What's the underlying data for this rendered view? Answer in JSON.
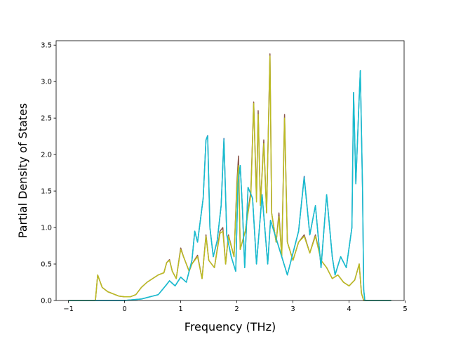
{
  "chart_data": {
    "type": "line",
    "title": "",
    "xlabel": "Frequency (THz)",
    "ylabel": "Partial Density of States",
    "xlim": [
      -1.22,
      4.98
    ],
    "ylim": [
      0.0,
      3.56
    ],
    "xticks": [
      -1,
      0,
      1,
      2,
      3,
      4,
      5
    ],
    "yticks": [
      0.0,
      0.5,
      1.0,
      1.5,
      2.0,
      2.5,
      3.0,
      3.5
    ],
    "xtick_labels": [
      "−1",
      "0",
      "1",
      "2",
      "3",
      "4",
      "5"
    ],
    "ytick_labels": [
      "0.0",
      "0.5",
      "1.0",
      "1.5",
      "2.0",
      "2.5",
      "3.0",
      "3.5"
    ],
    "grid": false,
    "legend": "none",
    "series": [
      {
        "color": "#1f77b4",
        "points": [
          [
            -1.0,
            0.0
          ],
          [
            -0.5,
            0.0
          ],
          [
            -0.3,
            0.0
          ],
          [
            0.0,
            0.0
          ],
          [
            0.3,
            0.02
          ],
          [
            0.6,
            0.08
          ],
          [
            0.75,
            0.22
          ],
          [
            0.8,
            0.27
          ],
          [
            0.9,
            0.2
          ],
          [
            1.0,
            0.32
          ],
          [
            1.1,
            0.25
          ],
          [
            1.2,
            0.55
          ],
          [
            1.25,
            0.95
          ],
          [
            1.3,
            0.8
          ],
          [
            1.4,
            1.4
          ],
          [
            1.45,
            2.2
          ],
          [
            1.48,
            2.26
          ],
          [
            1.52,
            1.0
          ],
          [
            1.58,
            0.6
          ],
          [
            1.65,
            0.82
          ],
          [
            1.72,
            1.3
          ],
          [
            1.77,
            2.22
          ],
          [
            1.82,
            0.9
          ],
          [
            1.9,
            0.6
          ],
          [
            1.98,
            0.4
          ],
          [
            2.02,
            1.6
          ],
          [
            2.06,
            1.85
          ],
          [
            2.1,
            1.25
          ],
          [
            2.14,
            0.45
          ],
          [
            2.2,
            1.55
          ],
          [
            2.28,
            1.4
          ],
          [
            2.35,
            0.5
          ],
          [
            2.45,
            1.45
          ],
          [
            2.55,
            0.5
          ],
          [
            2.6,
            1.1
          ],
          [
            2.7,
            0.85
          ],
          [
            2.8,
            0.6
          ],
          [
            2.9,
            0.35
          ],
          [
            3.0,
            0.65
          ],
          [
            3.1,
            0.95
          ],
          [
            3.2,
            1.7
          ],
          [
            3.3,
            0.9
          ],
          [
            3.4,
            1.3
          ],
          [
            3.5,
            0.45
          ],
          [
            3.6,
            1.45
          ],
          [
            3.7,
            0.6
          ],
          [
            3.75,
            0.35
          ],
          [
            3.85,
            0.6
          ],
          [
            3.95,
            0.45
          ],
          [
            4.05,
            1.0
          ],
          [
            4.08,
            2.85
          ],
          [
            4.12,
            1.6
          ],
          [
            4.17,
            2.6
          ],
          [
            4.2,
            3.15
          ],
          [
            4.24,
            1.5
          ],
          [
            4.26,
            0.15
          ],
          [
            4.28,
            0.0
          ],
          [
            4.75,
            0.0
          ]
        ]
      },
      {
        "color": "#8c564b",
        "points": [
          [
            -1.0,
            0.0
          ],
          [
            -0.52,
            0.0
          ],
          [
            -0.48,
            0.35
          ],
          [
            -0.4,
            0.18
          ],
          [
            -0.3,
            0.12
          ],
          [
            -0.1,
            0.06
          ],
          [
            0.0,
            0.05
          ],
          [
            0.1,
            0.05
          ],
          [
            0.2,
            0.08
          ],
          [
            0.3,
            0.18
          ],
          [
            0.4,
            0.25
          ],
          [
            0.5,
            0.3
          ],
          [
            0.6,
            0.35
          ],
          [
            0.7,
            0.38
          ],
          [
            0.75,
            0.52
          ],
          [
            0.8,
            0.56
          ],
          [
            0.85,
            0.4
          ],
          [
            0.92,
            0.3
          ],
          [
            1.0,
            0.72
          ],
          [
            1.05,
            0.6
          ],
          [
            1.15,
            0.4
          ],
          [
            1.2,
            0.5
          ],
          [
            1.3,
            0.62
          ],
          [
            1.38,
            0.3
          ],
          [
            1.45,
            0.9
          ],
          [
            1.5,
            0.55
          ],
          [
            1.6,
            0.45
          ],
          [
            1.7,
            0.95
          ],
          [
            1.75,
            1.0
          ],
          [
            1.8,
            0.5
          ],
          [
            1.85,
            0.9
          ],
          [
            1.95,
            0.6
          ],
          [
            2.0,
            1.6
          ],
          [
            2.03,
            1.98
          ],
          [
            2.06,
            0.7
          ],
          [
            2.15,
            0.95
          ],
          [
            2.25,
            1.5
          ],
          [
            2.3,
            2.72
          ],
          [
            2.35,
            1.4
          ],
          [
            2.38,
            2.6
          ],
          [
            2.42,
            1.3
          ],
          [
            2.48,
            2.2
          ],
          [
            2.53,
            1.2
          ],
          [
            2.59,
            3.38
          ],
          [
            2.62,
            1.2
          ],
          [
            2.7,
            0.8
          ],
          [
            2.75,
            1.2
          ],
          [
            2.8,
            0.6
          ],
          [
            2.85,
            2.55
          ],
          [
            2.9,
            0.8
          ],
          [
            3.0,
            0.55
          ],
          [
            3.1,
            0.8
          ],
          [
            3.2,
            0.9
          ],
          [
            3.3,
            0.65
          ],
          [
            3.4,
            0.9
          ],
          [
            3.5,
            0.55
          ],
          [
            3.6,
            0.45
          ],
          [
            3.7,
            0.3
          ],
          [
            3.8,
            0.35
          ],
          [
            3.9,
            0.25
          ],
          [
            4.0,
            0.2
          ],
          [
            4.1,
            0.28
          ],
          [
            4.18,
            0.5
          ],
          [
            4.22,
            0.1
          ],
          [
            4.26,
            0.0
          ],
          [
            4.75,
            0.0
          ]
        ]
      },
      {
        "color": "#bcbd22",
        "points": [
          [
            -1.0,
            0.0
          ],
          [
            -0.52,
            0.0
          ],
          [
            -0.48,
            0.35
          ],
          [
            -0.4,
            0.18
          ],
          [
            -0.3,
            0.12
          ],
          [
            -0.1,
            0.06
          ],
          [
            0.0,
            0.05
          ],
          [
            0.1,
            0.05
          ],
          [
            0.2,
            0.08
          ],
          [
            0.3,
            0.18
          ],
          [
            0.4,
            0.25
          ],
          [
            0.5,
            0.3
          ],
          [
            0.6,
            0.35
          ],
          [
            0.7,
            0.38
          ],
          [
            0.75,
            0.52
          ],
          [
            0.8,
            0.55
          ],
          [
            0.85,
            0.4
          ],
          [
            0.92,
            0.3
          ],
          [
            1.0,
            0.7
          ],
          [
            1.05,
            0.6
          ],
          [
            1.15,
            0.4
          ],
          [
            1.2,
            0.5
          ],
          [
            1.3,
            0.6
          ],
          [
            1.38,
            0.3
          ],
          [
            1.45,
            0.88
          ],
          [
            1.5,
            0.55
          ],
          [
            1.6,
            0.45
          ],
          [
            1.7,
            0.92
          ],
          [
            1.75,
            0.95
          ],
          [
            1.8,
            0.5
          ],
          [
            1.85,
            0.88
          ],
          [
            1.95,
            0.6
          ],
          [
            2.0,
            1.55
          ],
          [
            2.03,
            1.85
          ],
          [
            2.06,
            0.7
          ],
          [
            2.15,
            0.95
          ],
          [
            2.25,
            1.45
          ],
          [
            2.3,
            2.7
          ],
          [
            2.35,
            1.35
          ],
          [
            2.38,
            2.55
          ],
          [
            2.42,
            1.3
          ],
          [
            2.48,
            2.15
          ],
          [
            2.53,
            1.2
          ],
          [
            2.59,
            3.35
          ],
          [
            2.62,
            1.2
          ],
          [
            2.7,
            0.8
          ],
          [
            2.75,
            1.15
          ],
          [
            2.8,
            0.6
          ],
          [
            2.85,
            2.5
          ],
          [
            2.9,
            0.8
          ],
          [
            3.0,
            0.55
          ],
          [
            3.1,
            0.8
          ],
          [
            3.2,
            0.88
          ],
          [
            3.3,
            0.65
          ],
          [
            3.4,
            0.88
          ],
          [
            3.5,
            0.55
          ],
          [
            3.6,
            0.45
          ],
          [
            3.7,
            0.3
          ],
          [
            3.8,
            0.35
          ],
          [
            3.9,
            0.25
          ],
          [
            4.0,
            0.2
          ],
          [
            4.1,
            0.28
          ],
          [
            4.18,
            0.5
          ],
          [
            4.22,
            0.1
          ],
          [
            4.26,
            0.0
          ],
          [
            4.75,
            0.0
          ]
        ]
      },
      {
        "color": "#17becf",
        "points": [
          [
            -1.0,
            0.0
          ],
          [
            -0.5,
            0.0
          ],
          [
            -0.3,
            0.0
          ],
          [
            0.0,
            0.0
          ],
          [
            0.3,
            0.02
          ],
          [
            0.6,
            0.08
          ],
          [
            0.75,
            0.22
          ],
          [
            0.8,
            0.27
          ],
          [
            0.9,
            0.2
          ],
          [
            1.0,
            0.32
          ],
          [
            1.1,
            0.25
          ],
          [
            1.2,
            0.55
          ],
          [
            1.25,
            0.95
          ],
          [
            1.3,
            0.8
          ],
          [
            1.4,
            1.4
          ],
          [
            1.45,
            2.2
          ],
          [
            1.48,
            2.25
          ],
          [
            1.52,
            1.0
          ],
          [
            1.58,
            0.6
          ],
          [
            1.65,
            0.82
          ],
          [
            1.72,
            1.3
          ],
          [
            1.77,
            2.2
          ],
          [
            1.82,
            0.9
          ],
          [
            1.9,
            0.6
          ],
          [
            1.98,
            0.4
          ],
          [
            2.02,
            1.6
          ],
          [
            2.06,
            1.85
          ],
          [
            2.1,
            1.25
          ],
          [
            2.14,
            0.45
          ],
          [
            2.2,
            1.55
          ],
          [
            2.28,
            1.4
          ],
          [
            2.35,
            0.5
          ],
          [
            2.45,
            1.45
          ],
          [
            2.55,
            0.5
          ],
          [
            2.6,
            1.1
          ],
          [
            2.7,
            0.85
          ],
          [
            2.8,
            0.6
          ],
          [
            2.9,
            0.35
          ],
          [
            3.0,
            0.65
          ],
          [
            3.1,
            0.95
          ],
          [
            3.2,
            1.68
          ],
          [
            3.3,
            0.9
          ],
          [
            3.4,
            1.3
          ],
          [
            3.5,
            0.45
          ],
          [
            3.6,
            1.45
          ],
          [
            3.7,
            0.6
          ],
          [
            3.75,
            0.35
          ],
          [
            3.85,
            0.6
          ],
          [
            3.95,
            0.45
          ],
          [
            4.05,
            1.0
          ],
          [
            4.08,
            2.85
          ],
          [
            4.12,
            1.6
          ],
          [
            4.17,
            2.6
          ],
          [
            4.2,
            3.15
          ],
          [
            4.24,
            1.5
          ],
          [
            4.26,
            0.15
          ],
          [
            4.28,
            0.0
          ],
          [
            4.75,
            0.0
          ]
        ]
      }
    ]
  }
}
